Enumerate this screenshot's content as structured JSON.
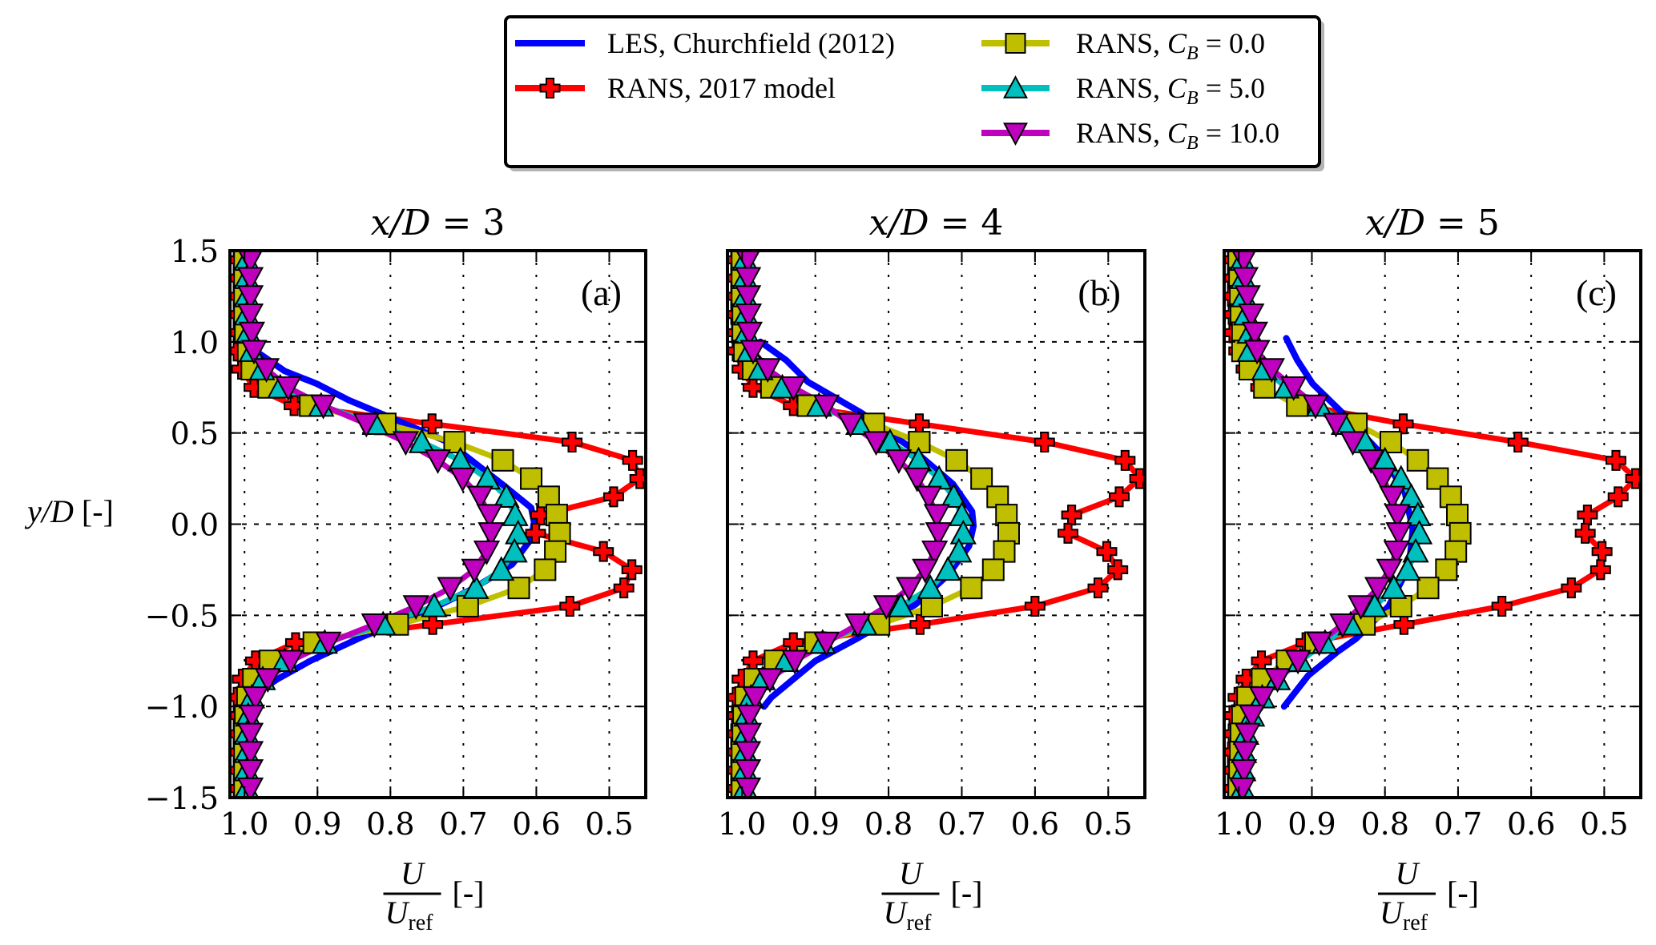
{
  "chart_data": {
    "type": "line",
    "figure": "Wake velocity deficit profiles at three downstream distances",
    "ylabel": "y/D [-]",
    "xlabel": {
      "numerator": "U",
      "denominator": "U",
      "denominator_subscript": "ref",
      "unit": "[-]"
    },
    "xlim": [
      1.02,
      0.45
    ],
    "ylim": [
      -1.5,
      1.5
    ],
    "x_reversed": true,
    "grid": true,
    "xticks": [
      "1.0",
      "0.9",
      "0.8",
      "0.7",
      "0.6",
      "0.5"
    ],
    "xtick_values": [
      1.0,
      0.9,
      0.8,
      0.7,
      0.6,
      0.5
    ],
    "yticks": [
      "1.5",
      "1.0",
      "0.5",
      "0.0",
      "−0.5",
      "−1.0",
      "−1.5"
    ],
    "ytick_values": [
      1.5,
      1.0,
      0.5,
      0.0,
      -0.5,
      -1.0,
      -1.5
    ],
    "legend": {
      "position": "top-center",
      "entries": [
        {
          "key": "les",
          "label": "LES, Churchfield (2012)",
          "color": "#0000ff",
          "marker": "none"
        },
        {
          "key": "rans2017",
          "label": "RANS, 2017 model",
          "color": "#ff0000",
          "marker": "plus"
        },
        {
          "key": "cb0",
          "label_prefix": "RANS, ",
          "label_math": "C",
          "label_sub": "B",
          "label_suffix": " = 0.0",
          "label": "RANS, C_B = 0.0",
          "color": "#bfbf00",
          "marker": "square"
        },
        {
          "key": "cb5",
          "label_prefix": "RANS, ",
          "label_math": "C",
          "label_sub": "B",
          "label_suffix": " = 5.0",
          "label": "RANS, C_B = 5.0",
          "color": "#00bfbf",
          "marker": "triangle-up"
        },
        {
          "key": "cb10",
          "label_prefix": "RANS, ",
          "label_math": "C",
          "label_sub": "B",
          "label_suffix": " = 10.0",
          "label": "RANS, C_B = 10.0",
          "color": "#bf00bf",
          "marker": "triangle-down"
        }
      ]
    },
    "marker_y": [
      1.45,
      1.35,
      1.25,
      1.15,
      1.05,
      0.95,
      0.85,
      0.75,
      0.65,
      0.55,
      0.45,
      0.35,
      0.25,
      0.15,
      0.05,
      -0.05,
      -0.15,
      -0.25,
      -0.35,
      -0.45,
      -0.55,
      -0.65,
      -0.75,
      -0.85,
      -0.95,
      -1.05,
      -1.15,
      -1.25,
      -1.35,
      -1.45
    ],
    "panels": [
      {
        "title_var": "x/D",
        "title_value": "3",
        "title": "x/D = 3",
        "tag": "(a)",
        "series": {
          "les": {
            "y": [
              0.95,
              0.84,
              0.77,
              0.68,
              0.6,
              0.45,
              0.21,
              0.09,
              0.01,
              -0.08,
              -0.22,
              -0.35,
              -0.48,
              -0.62,
              -0.75,
              -0.85,
              -0.93
            ],
            "u": [
              0.985,
              0.945,
              0.901,
              0.857,
              0.809,
              0.721,
              0.644,
              0.607,
              0.603,
              0.607,
              0.633,
              0.685,
              0.751,
              0.84,
              0.91,
              0.955,
              0.985
            ]
          },
          "rans2017": {
            "u": [
              1.01,
              1.01,
              1.01,
              1.01,
              1.01,
              1.01,
              1.004,
              0.987,
              0.932,
              0.743,
              0.551,
              0.468,
              0.458,
              0.494,
              0.594,
              0.601,
              0.508,
              0.469,
              0.48,
              0.554,
              0.742,
              0.93,
              0.985,
              1.003,
              1.01,
              1.01,
              1.01,
              1.01,
              1.01,
              1.01
            ]
          },
          "cb0": {
            "u": [
              1.0,
              1.0,
              1.0,
              1.0,
              0.999,
              0.995,
              0.99,
              0.967,
              0.91,
              0.807,
              0.712,
              0.646,
              0.607,
              0.583,
              0.572,
              0.568,
              0.574,
              0.588,
              0.624,
              0.694,
              0.79,
              0.905,
              0.965,
              0.988,
              0.996,
              0.999,
              1.0,
              1.0,
              1.0,
              1.0
            ]
          },
          "cb5": {
            "u": [
              0.997,
              0.997,
              0.997,
              0.997,
              0.995,
              0.99,
              0.976,
              0.951,
              0.895,
              0.821,
              0.757,
              0.704,
              0.667,
              0.641,
              0.629,
              0.625,
              0.63,
              0.648,
              0.683,
              0.74,
              0.81,
              0.89,
              0.945,
              0.975,
              0.99,
              0.995,
              0.997,
              0.997,
              0.997,
              0.997
            ]
          },
          "cb10": {
            "u": [
              0.992,
              0.992,
              0.992,
              0.992,
              0.99,
              0.987,
              0.97,
              0.94,
              0.892,
              0.833,
              0.779,
              0.735,
              0.701,
              0.677,
              0.664,
              0.662,
              0.668,
              0.685,
              0.718,
              0.765,
              0.822,
              0.885,
              0.937,
              0.968,
              0.985,
              0.99,
              0.992,
              0.992,
              0.992,
              0.992
            ]
          }
        }
      },
      {
        "title_var": "x/D",
        "title_value": "4",
        "title": "x/D = 4",
        "tag": "(b)",
        "series": {
          "les": {
            "y": [
              1.0,
              0.9,
              0.78,
              0.61,
              0.42,
              0.22,
              0.07,
              -0.01,
              -0.12,
              -0.28,
              -0.44,
              -0.63,
              -0.75,
              -0.85,
              -0.95,
              -1.0
            ],
            "u": [
              0.975,
              0.94,
              0.91,
              0.837,
              0.77,
              0.712,
              0.686,
              0.684,
              0.69,
              0.719,
              0.763,
              0.844,
              0.9,
              0.93,
              0.96,
              0.97
            ]
          },
          "rans2017": {
            "u": [
              1.01,
              1.01,
              1.01,
              1.01,
              1.009,
              1.008,
              1.0,
              0.985,
              0.93,
              0.758,
              0.587,
              0.477,
              0.457,
              0.485,
              0.55,
              0.555,
              0.502,
              0.487,
              0.514,
              0.6,
              0.757,
              0.93,
              0.985,
              1.0,
              1.008,
              1.009,
              1.01,
              1.01,
              1.01,
              1.01
            ]
          },
          "cb0": {
            "u": [
              1.0,
              1.0,
              1.0,
              0.999,
              0.999,
              0.997,
              0.985,
              0.96,
              0.91,
              0.82,
              0.758,
              0.707,
              0.673,
              0.651,
              0.639,
              0.636,
              0.642,
              0.657,
              0.687,
              0.741,
              0.813,
              0.9,
              0.955,
              0.983,
              0.995,
              0.998,
              0.999,
              1.0,
              1.0,
              1.0
            ]
          },
          "cb5": {
            "u": [
              0.996,
              0.996,
              0.996,
              0.995,
              0.994,
              0.99,
              0.975,
              0.945,
              0.895,
              0.841,
              0.798,
              0.759,
              0.731,
              0.711,
              0.7,
              0.698,
              0.704,
              0.719,
              0.743,
              0.783,
              0.833,
              0.89,
              0.94,
              0.972,
              0.988,
              0.994,
              0.995,
              0.996,
              0.996,
              0.996
            ]
          },
          "cb10": {
            "u": [
              0.992,
              0.992,
              0.992,
              0.991,
              0.99,
              0.985,
              0.965,
              0.93,
              0.885,
              0.852,
              0.817,
              0.786,
              0.761,
              0.745,
              0.734,
              0.732,
              0.737,
              0.75,
              0.772,
              0.803,
              0.842,
              0.885,
              0.928,
              0.962,
              0.982,
              0.99,
              0.991,
              0.992,
              0.992,
              0.992
            ]
          }
        }
      },
      {
        "title_var": "x/D",
        "title_value": "5",
        "title": "x/D = 5",
        "tag": "(c)",
        "series": {
          "les": {
            "y": [
              1.02,
              0.9,
              0.77,
              0.59,
              0.39,
              0.18,
              -0.03,
              -0.23,
              -0.45,
              -0.63,
              -0.7,
              -0.83,
              -1.0
            ],
            "u": [
              0.935,
              0.92,
              0.899,
              0.853,
              0.806,
              0.773,
              0.762,
              0.767,
              0.795,
              0.84,
              0.865,
              0.905,
              0.938
            ]
          },
          "rans2017": {
            "u": [
              1.01,
              1.01,
              1.01,
              1.009,
              1.008,
              1.0,
              0.99,
              0.97,
              0.91,
              0.775,
              0.618,
              0.484,
              0.457,
              0.481,
              0.523,
              0.526,
              0.503,
              0.505,
              0.545,
              0.64,
              0.774,
              0.908,
              0.969,
              0.99,
              1.001,
              1.008,
              1.009,
              1.01,
              1.01,
              1.01
            ]
          },
          "cb0": {
            "u": [
              1.0,
              0.999,
              0.998,
              0.997,
              0.995,
              0.995,
              0.985,
              0.965,
              0.92,
              0.839,
              0.792,
              0.755,
              0.728,
              0.71,
              0.701,
              0.697,
              0.703,
              0.716,
              0.741,
              0.778,
              0.828,
              0.895,
              0.934,
              0.968,
              0.988,
              0.995,
              0.997,
              0.998,
              0.999,
              1.0
            ]
          },
          "cb5": {
            "u": [
              0.995,
              0.994,
              0.993,
              0.99,
              0.985,
              0.985,
              0.965,
              0.935,
              0.89,
              0.856,
              0.827,
              0.8,
              0.778,
              0.764,
              0.755,
              0.753,
              0.758,
              0.769,
              0.788,
              0.814,
              0.847,
              0.882,
              0.916,
              0.947,
              0.968,
              0.982,
              0.99,
              0.993,
              0.994,
              0.995
            ]
          },
          "cb10": {
            "u": [
              0.993,
              0.991,
              0.988,
              0.983,
              0.978,
              0.975,
              0.955,
              0.925,
              0.895,
              0.867,
              0.844,
              0.819,
              0.803,
              0.79,
              0.783,
              0.781,
              0.784,
              0.794,
              0.81,
              0.833,
              0.858,
              0.89,
              0.919,
              0.947,
              0.968,
              0.982,
              0.988,
              0.991,
              0.993,
              0.995
            ]
          }
        }
      }
    ]
  }
}
